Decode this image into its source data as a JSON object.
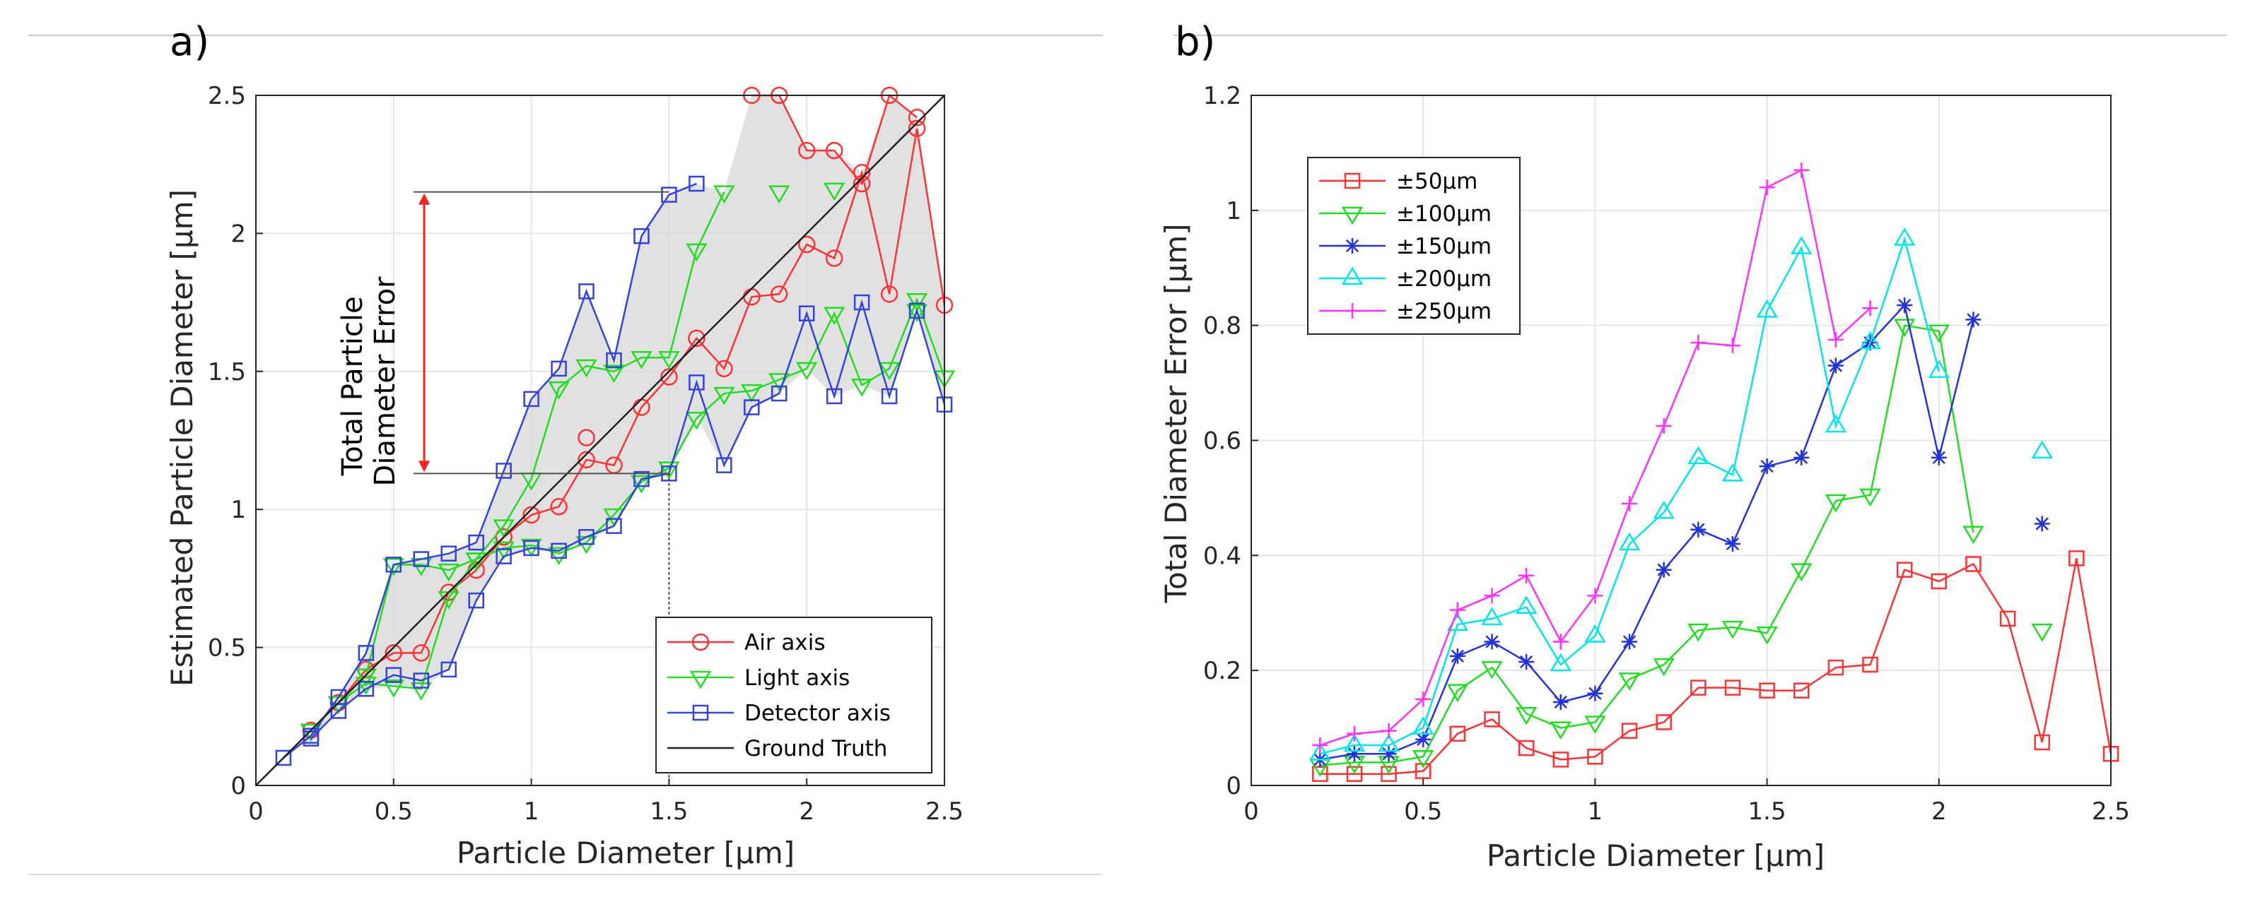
{
  "colors": {
    "air": "#ff3333",
    "light": "#22dd22",
    "detector": "#3344dd",
    "truth": "#222222",
    "c50": "#ff3333",
    "c100": "#22dd22",
    "c150": "#2233dd",
    "c200": "#00e5ee",
    "c250": "#ff33ff",
    "shade": "#d9d9d9",
    "arrow": "#ff2020"
  },
  "chart_data": [
    {
      "panel_label": "a)",
      "type": "line",
      "xlabel": "Particle Diameter [μm]",
      "ylabel": "Estimated Particle Diameter [μm]",
      "xlim": [
        0,
        2.5
      ],
      "ylim": [
        0,
        2.5
      ],
      "xticks": [
        0,
        0.5,
        1,
        1.5,
        2,
        2.5
      ],
      "yticks": [
        0,
        0.5,
        1,
        1.5,
        2,
        2.5
      ],
      "xtick_labels": [
        "0",
        "0.5",
        "1",
        "1.5",
        "2",
        "2.5"
      ],
      "ytick_labels": [
        "0",
        "0.5",
        "1",
        "1.5",
        "2",
        "2.5"
      ],
      "grid": true,
      "legend_position": "bottom-right",
      "annotation": {
        "lines": [
          "Total Particle",
          "Diameter Error"
        ],
        "at_x": 1.5,
        "from_y": 1.13,
        "to_y": 2.15
      },
      "series": [
        {
          "name": "Air axis",
          "marker": "circle",
          "color_key": "air",
          "x": [],
          "y": [],
          "segments": [
            {
              "x": [
                0.2,
                0.3,
                0.4,
                0.5,
                0.6,
                0.7,
                0.8,
                0.9,
                1.0,
                1.1,
                1.2,
                1.3,
                1.4,
                1.5,
                1.6,
                1.7,
                1.8,
                1.9,
                2.0,
                2.1,
                2.2,
                2.3,
                2.4,
                2.5
              ],
              "y": [
                0.2,
                0.3,
                0.42,
                0.48,
                0.48,
                0.7,
                0.78,
                0.9,
                0.98,
                1.01,
                1.18,
                1.16,
                1.37,
                1.48,
                1.62,
                1.51,
                1.77,
                1.78,
                1.96,
                1.91,
                2.22,
                1.78,
                2.38,
                1.74
              ]
            },
            {
              "x": [
                1.8,
                1.9,
                2.0,
                2.1,
                2.2,
                2.3,
                2.4
              ],
              "y": [
                2.5,
                2.5,
                2.3,
                2.3,
                2.18,
                2.5,
                2.42
              ]
            }
          ],
          "extra_points": {
            "x": [
              1.2
            ],
            "y": [
              1.26
            ]
          }
        },
        {
          "name": "Light axis",
          "marker": "triangle-down",
          "color_key": "light",
          "segments": [
            {
              "x": [
                0.2,
                0.3,
                0.4,
                0.5,
                0.6,
                0.7,
                0.8,
                0.9,
                1.0,
                1.1,
                1.2,
                1.3,
                1.4,
                1.5,
                1.6,
                1.7
              ],
              "y": [
                0.2,
                0.3,
                0.4,
                0.8,
                0.8,
                0.78,
                0.82,
                0.94,
                1.11,
                1.44,
                1.52,
                1.5,
                1.55,
                1.55,
                1.94,
                2.15
              ]
            },
            {
              "x": [
                0.2,
                0.3,
                0.4,
                0.5,
                0.6,
                0.7,
                0.8,
                0.9,
                1.0,
                1.1,
                1.2,
                1.3,
                1.4,
                1.5,
                1.6,
                1.7,
                1.8,
                1.9,
                2.0,
                2.1,
                2.2,
                2.3,
                2.4,
                2.5
              ],
              "y": [
                0.2,
                0.3,
                0.37,
                0.36,
                0.35,
                0.68,
                0.82,
                0.86,
                0.87,
                0.84,
                0.88,
                0.98,
                1.1,
                1.15,
                1.33,
                1.42,
                1.43,
                1.47,
                1.51,
                1.71,
                1.45,
                1.51,
                1.76,
                1.48
              ]
            }
          ],
          "extra_points": {
            "x": [
              1.9,
              2.1,
              2.4
            ],
            "y": [
              2.15,
              2.16,
              1.72
            ]
          }
        },
        {
          "name": "Detector axis",
          "marker": "square",
          "color_key": "detector",
          "segments": [
            {
              "x": [
                0.1,
                0.2,
                0.3,
                0.4,
                0.5,
                0.6,
                0.7,
                0.8,
                0.9,
                1.0,
                1.1,
                1.2,
                1.3,
                1.4,
                1.5,
                1.6
              ],
              "y": [
                0.1,
                0.18,
                0.32,
                0.48,
                0.8,
                0.82,
                0.84,
                0.88,
                1.14,
                1.4,
                1.51,
                1.79,
                1.54,
                1.99,
                2.14,
                2.18
              ]
            },
            {
              "x": [
                0.2,
                0.3,
                0.4,
                0.5,
                0.6,
                0.7,
                0.8,
                0.9,
                1.0,
                1.1,
                1.2,
                1.3,
                1.4,
                1.5,
                1.6,
                1.7,
                1.8,
                1.9,
                2.0,
                2.1,
                2.2,
                2.3,
                2.4,
                2.5
              ],
              "y": [
                0.17,
                0.27,
                0.35,
                0.4,
                0.38,
                0.42,
                0.67,
                0.83,
                0.86,
                0.85,
                0.9,
                0.94,
                1.11,
                1.13,
                1.46,
                1.16,
                1.37,
                1.42,
                1.71,
                1.41,
                1.75,
                1.41,
                1.72,
                1.38
              ]
            }
          ]
        },
        {
          "name": "Ground Truth",
          "marker": "none",
          "color_key": "truth",
          "segments": [
            {
              "x": [
                0,
                2.5
              ],
              "y": [
                0,
                2.5
              ]
            }
          ]
        }
      ]
    },
    {
      "panel_label": "b)",
      "type": "line",
      "xlabel": "Particle Diameter [μm]",
      "ylabel": "Total Diameter Error [μm]",
      "xlim": [
        0,
        2.5
      ],
      "ylim": [
        0,
        1.2
      ],
      "xticks": [
        0,
        0.5,
        1,
        1.5,
        2,
        2.5
      ],
      "yticks": [
        0,
        0.2,
        0.4,
        0.6,
        0.8,
        1,
        1.2
      ],
      "xtick_labels": [
        "0",
        "0.5",
        "1",
        "1.5",
        "2",
        "2.5"
      ],
      "ytick_labels": [
        "0",
        "0.2",
        "0.4",
        "0.6",
        "0.8",
        "1",
        "1.2"
      ],
      "grid": true,
      "legend_position": "top-left",
      "series": [
        {
          "name": "±50μm",
          "marker": "square",
          "color_key": "c50",
          "segments": [
            {
              "x": [
                0.2,
                0.3,
                0.4,
                0.5,
                0.6,
                0.7,
                0.8,
                0.9,
                1.0,
                1.1,
                1.2,
                1.3,
                1.4,
                1.5,
                1.6,
                1.7,
                1.8,
                1.9,
                2.0,
                2.1,
                2.2,
                2.3,
                2.4,
                2.5
              ],
              "y": [
                0.02,
                0.02,
                0.02,
                0.025,
                0.09,
                0.115,
                0.065,
                0.045,
                0.05,
                0.095,
                0.11,
                0.17,
                0.17,
                0.165,
                0.165,
                0.205,
                0.21,
                0.375,
                0.355,
                0.385,
                0.29,
                0.075,
                0.395,
                0.055
              ]
            }
          ]
        },
        {
          "name": "±100μm",
          "marker": "triangle-down",
          "color_key": "c100",
          "segments": [
            {
              "x": [
                0.2,
                0.3,
                0.4,
                0.5,
                0.6,
                0.7,
                0.8,
                0.9,
                1.0,
                1.1,
                1.2,
                1.3,
                1.4,
                1.5,
                1.6,
                1.7,
                1.8,
                1.9,
                2.0,
                2.1
              ],
              "y": [
                0.035,
                0.04,
                0.04,
                0.05,
                0.165,
                0.205,
                0.125,
                0.1,
                0.11,
                0.185,
                0.21,
                0.27,
                0.275,
                0.265,
                0.375,
                0.495,
                0.505,
                0.8,
                0.79,
                0.44
              ]
            }
          ],
          "extra_points": {
            "x": [
              2.3
            ],
            "y": [
              0.27
            ]
          }
        },
        {
          "name": "±150μm",
          "marker": "star",
          "color_key": "c150",
          "segments": [
            {
              "x": [
                0.2,
                0.3,
                0.4,
                0.5,
                0.6,
                0.7,
                0.8,
                0.9,
                1.0,
                1.1,
                1.2,
                1.3,
                1.4,
                1.5,
                1.6,
                1.7,
                1.8,
                1.9,
                2.0,
                2.1
              ],
              "y": [
                0.045,
                0.055,
                0.055,
                0.08,
                0.225,
                0.25,
                0.215,
                0.145,
                0.16,
                0.25,
                0.375,
                0.445,
                0.42,
                0.555,
                0.57,
                0.73,
                0.77,
                0.835,
                0.57,
                0.81
              ]
            }
          ],
          "extra_points": {
            "x": [
              2.3
            ],
            "y": [
              0.455
            ]
          }
        },
        {
          "name": "±200μm",
          "marker": "triangle-up",
          "color_key": "c200",
          "segments": [
            {
              "x": [
                0.2,
                0.3,
                0.4,
                0.5,
                0.6,
                0.7,
                0.8,
                0.9,
                1.0,
                1.1,
                1.2,
                1.3,
                1.4,
                1.5,
                1.6,
                1.7,
                1.8,
                1.9,
                2.0
              ],
              "y": [
                0.055,
                0.07,
                0.07,
                0.1,
                0.28,
                0.29,
                0.31,
                0.21,
                0.26,
                0.42,
                0.475,
                0.57,
                0.54,
                0.825,
                0.935,
                0.625,
                0.77,
                0.95,
                0.72
              ]
            }
          ],
          "extra_points": {
            "x": [
              2.3
            ],
            "y": [
              0.58
            ]
          }
        },
        {
          "name": "±250μm",
          "marker": "plus",
          "color_key": "c250",
          "segments": [
            {
              "x": [
                0.2,
                0.3,
                0.4,
                0.5,
                0.6,
                0.7,
                0.8,
                0.9,
                1.0,
                1.1,
                1.2,
                1.3,
                1.4,
                1.5,
                1.6,
                1.7,
                1.8
              ],
              "y": [
                0.07,
                0.09,
                0.095,
                0.15,
                0.305,
                0.33,
                0.365,
                0.25,
                0.33,
                0.49,
                0.625,
                0.77,
                0.765,
                1.04,
                1.07,
                0.775,
                0.83
              ]
            }
          ]
        }
      ]
    }
  ]
}
